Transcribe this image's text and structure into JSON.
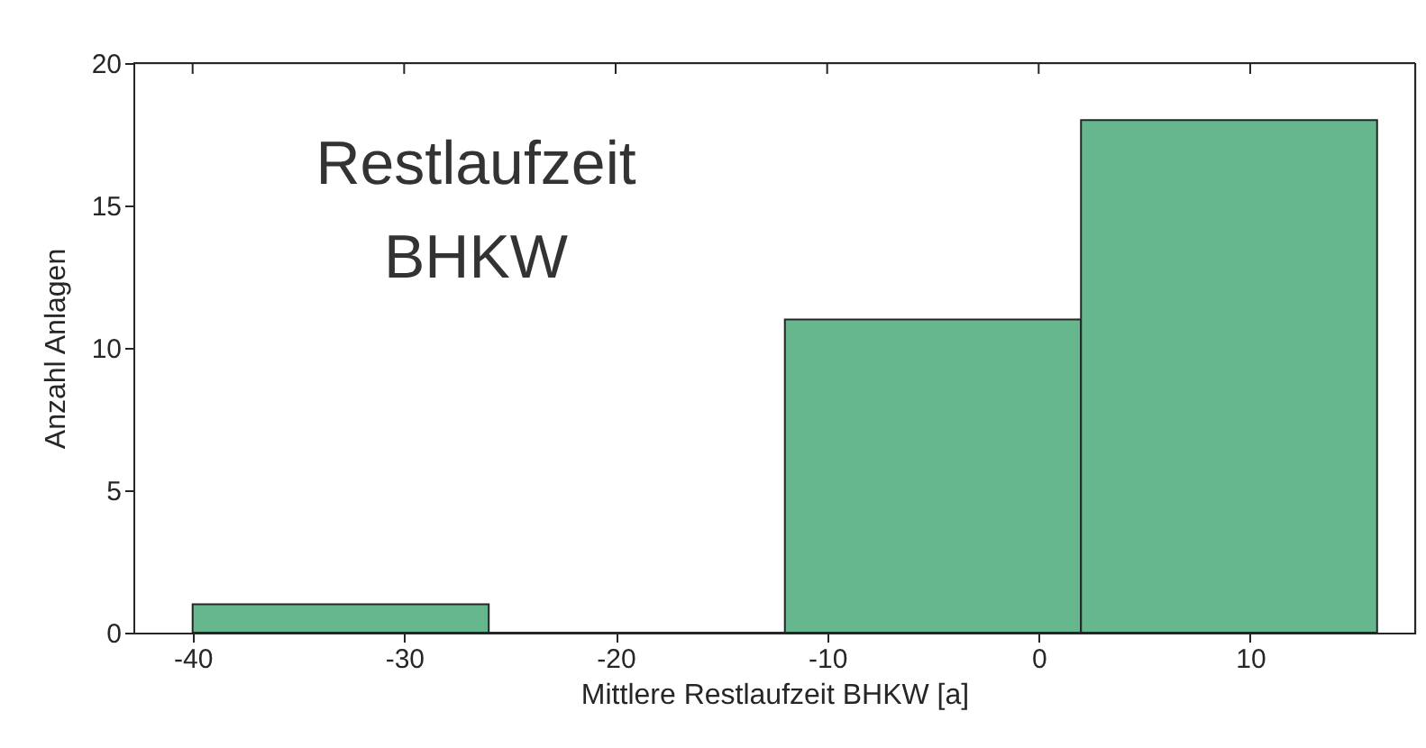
{
  "chart_data": {
    "type": "histogram",
    "bins": [
      -40,
      -26,
      -12,
      2,
      16
    ],
    "values": [
      1,
      0,
      11,
      18
    ],
    "color": "#66b68e",
    "xlim": [
      -42.8,
      17.8
    ],
    "xticks": [
      -40,
      -30,
      -20,
      -10,
      0,
      10
    ],
    "ylim": [
      0,
      20
    ],
    "yticks": [
      0,
      5,
      10,
      15,
      20
    ],
    "xlabel": "Mittlere Restlaufzeit BHKW [a]",
    "ylabel": "Anzahl Anlagen",
    "annotations": [
      "Restlaufzeit\nBHKW"
    ],
    "grid": false
  }
}
